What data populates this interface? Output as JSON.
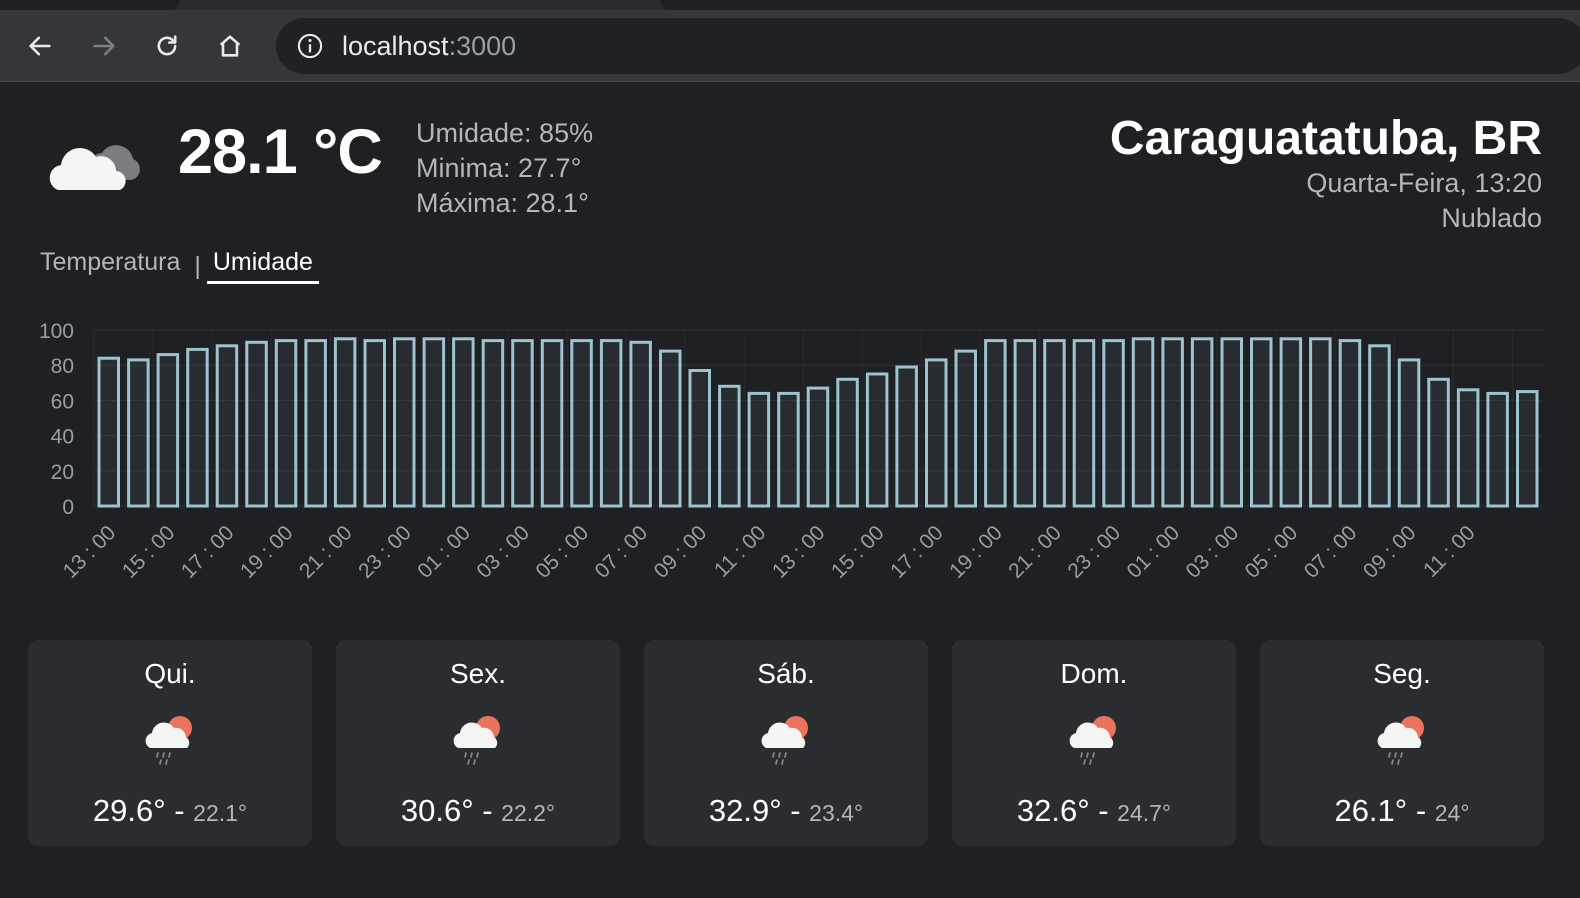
{
  "browser": {
    "url_host": "localhost",
    "url_port": ":3000"
  },
  "current": {
    "icon": "cloud-icon",
    "temperature": "28.1 °C",
    "humidity": "Umidade: 85%",
    "min": "Minima: 27.7°",
    "max": "Máxima: 28.1°"
  },
  "location": {
    "city": "Caraguatatuba, BR",
    "datetime": "Quarta-Feira, 13:20",
    "condition": "Nublado"
  },
  "tabs": {
    "temperature": "Temperatura",
    "separator": "|",
    "humidity": "Umidade"
  },
  "chart_data": {
    "type": "bar",
    "ylim": [
      0,
      100
    ],
    "yticks": [
      0,
      20,
      40,
      60,
      80,
      100
    ],
    "xticks": [
      "13 : 00",
      "15 : 00",
      "17 : 00",
      "19 : 00",
      "21 : 00",
      "23 : 00",
      "01 : 00",
      "03 : 00",
      "05 : 00",
      "07 : 00",
      "09 : 00",
      "11 : 00",
      "13 : 00",
      "15 : 00",
      "17 : 00",
      "19 : 00",
      "21 : 00",
      "23 : 00",
      "01 : 00",
      "03 : 00",
      "05 : 00",
      "07 : 00",
      "09 : 00",
      "11 : 00"
    ],
    "values": [
      84,
      83,
      86,
      89,
      91,
      93,
      94,
      94,
      95,
      94,
      95,
      95,
      95,
      94,
      94,
      94,
      94,
      94,
      93,
      88,
      77,
      68,
      64,
      64,
      67,
      72,
      75,
      79,
      83,
      88,
      94,
      94,
      94,
      94,
      94,
      95,
      95,
      95,
      95,
      95,
      95,
      95,
      94,
      91,
      83,
      72,
      66,
      64,
      65
    ],
    "bar_color": "#9cc3cf",
    "grid": true
  },
  "forecast": [
    {
      "day": "Qui.",
      "max": "29.6°",
      "dash": "-",
      "min": "22.1°",
      "icon": "cloud-sun-rain-icon"
    },
    {
      "day": "Sex.",
      "max": "30.6°",
      "dash": "-",
      "min": "22.2°",
      "icon": "cloud-sun-rain-icon"
    },
    {
      "day": "Sáb.",
      "max": "32.9°",
      "dash": "-",
      "min": "23.4°",
      "icon": "cloud-sun-rain-icon"
    },
    {
      "day": "Dom.",
      "max": "32.6°",
      "dash": "-",
      "min": "24.7°",
      "icon": "cloud-sun-rain-icon"
    },
    {
      "day": "Seg.",
      "max": "26.1°",
      "dash": "-",
      "min": "24°",
      "icon": "cloud-sun-rain-icon"
    }
  ]
}
